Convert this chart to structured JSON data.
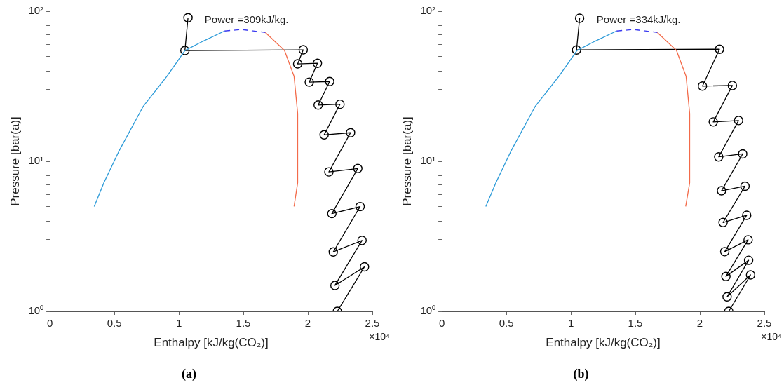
{
  "chart_data": [
    {
      "type": "line",
      "title": "(a)",
      "xlabel": "Enthalpy [kJ/kg(CO₂)]",
      "ylabel": "Pressure [bar(a)]",
      "annotations": [
        "Power =309kJ/kg.",
        "×10⁴"
      ],
      "log": "y",
      "grid": false,
      "legend": false,
      "xlim": [
        0,
        2.5
      ],
      "xticks": [
        0,
        0.5,
        1,
        1.5,
        2,
        2.5
      ],
      "ylim": [
        1,
        100
      ],
      "yticks": [
        {
          "value": 1,
          "label": "10⁰"
        },
        {
          "value": 2,
          "label": null
        },
        {
          "value": 3,
          "label": null
        },
        {
          "value": 4,
          "label": null
        },
        {
          "value": 5,
          "label": null
        },
        {
          "value": 6,
          "label": null
        },
        {
          "value": 7,
          "label": null
        },
        {
          "value": 8,
          "label": null
        },
        {
          "value": 9,
          "label": null
        },
        {
          "value": 10,
          "label": "10¹"
        },
        {
          "value": 20,
          "label": null
        },
        {
          "value": 30,
          "label": null
        },
        {
          "value": 40,
          "label": null
        },
        {
          "value": 50,
          "label": null
        },
        {
          "value": 60,
          "label": null
        },
        {
          "value": 70,
          "label": null
        },
        {
          "value": 80,
          "label": null
        },
        {
          "value": 90,
          "label": null
        },
        {
          "value": 100,
          "label": "10²"
        }
      ],
      "series": [
        {
          "color": "#2b9ad8",
          "marker": "none",
          "line_style": "solid",
          "x": [
            0.344,
            0.419,
            0.536,
            0.722,
            0.908,
            1.047,
            1.187,
            1.354
          ],
          "values": [
            5.0,
            7.2,
            11.7,
            23.1,
            36.9,
            54.7,
            63.1,
            73.8
          ]
        },
        {
          "color": "#3a3af0",
          "marker": "none",
          "line_style": "dashed",
          "x": [
            1.354,
            1.484,
            1.67
          ],
          "values": [
            73.8,
            75.6,
            72.2
          ]
        },
        {
          "color": "#f36b4a",
          "marker": "none",
          "line_style": "solid",
          "x": [
            1.67,
            1.819,
            1.893,
            1.921,
            1.921,
            1.893
          ],
          "values": [
            72.2,
            54.7,
            36.9,
            20.8,
            7.2,
            5.0
          ]
        },
        {
          "color": "#000000",
          "marker": "circle",
          "line_style": "solid",
          "x": [
            1.071,
            1.047,
            1.964,
            1.921,
            2.074,
            2.011,
            2.169,
            2.08,
            2.249,
            2.126,
            2.331,
            2.163,
            2.387,
            2.186,
            2.405,
            2.197,
            2.42,
            2.21,
            2.439,
            2.228
          ],
          "values": [
            90.5,
            54.7,
            55.3,
            44.6,
            45,
            33.7,
            34,
            23.7,
            24,
            15,
            15.5,
            8.5,
            8.95,
            4.48,
            4.99,
            2.49,
            2.97,
            1.49,
            1.98,
            1.0
          ]
        }
      ]
    },
    {
      "type": "line",
      "title": "(b)",
      "xlabel": "Enthalpy [kJ/kg(CO₂)]",
      "ylabel": "Pressure [bar(a)]",
      "annotations": [
        "Power =334kJ/kg.",
        "×10⁴"
      ],
      "log": "y",
      "grid": false,
      "legend": false,
      "xlim": [
        0,
        2.5
      ],
      "xticks": [
        0,
        0.5,
        1,
        1.5,
        2,
        2.5
      ],
      "ylim": [
        1,
        100
      ],
      "yticks": [
        {
          "value": 1,
          "label": "10⁰"
        },
        {
          "value": 2,
          "label": null
        },
        {
          "value": 3,
          "label": null
        },
        {
          "value": 4,
          "label": null
        },
        {
          "value": 5,
          "label": null
        },
        {
          "value": 6,
          "label": null
        },
        {
          "value": 7,
          "label": null
        },
        {
          "value": 8,
          "label": null
        },
        {
          "value": 9,
          "label": null
        },
        {
          "value": 10,
          "label": "10¹"
        },
        {
          "value": 20,
          "label": null
        },
        {
          "value": 30,
          "label": null
        },
        {
          "value": 40,
          "label": null
        },
        {
          "value": 50,
          "label": null
        },
        {
          "value": 60,
          "label": null
        },
        {
          "value": 70,
          "label": null
        },
        {
          "value": 80,
          "label": null
        },
        {
          "value": 90,
          "label": null
        },
        {
          "value": 100,
          "label": "10²"
        }
      ],
      "series": [
        {
          "color": "#2b9ad8",
          "marker": "none",
          "line_style": "solid",
          "x": [
            0.341,
            0.419,
            0.536,
            0.722,
            0.908,
            1.047,
            1.187,
            1.354
          ],
          "values": [
            5.0,
            7.2,
            11.7,
            23.1,
            36.9,
            54.7,
            63.1,
            73.8
          ]
        },
        {
          "color": "#3a3af0",
          "marker": "none",
          "line_style": "dashed",
          "x": [
            1.354,
            1.484,
            1.67
          ],
          "values": [
            73.8,
            75.6,
            72.2
          ]
        },
        {
          "color": "#f36b4a",
          "marker": "none",
          "line_style": "solid",
          "x": [
            1.67,
            1.819,
            1.893,
            1.921,
            1.921,
            1.89
          ],
          "values": [
            72.2,
            54.7,
            36.9,
            20.8,
            7.2,
            5.0
          ]
        },
        {
          "color": "#000000",
          "marker": "circle",
          "line_style": "solid",
          "x": [
            1.068,
            1.044,
            2.152,
            2.02,
            2.252,
            2.104,
            2.3,
            2.146,
            2.332,
            2.168,
            2.35,
            2.18,
            2.363,
            2.193,
            2.374,
            2.202,
            2.378,
            2.211,
            2.393,
            2.224
          ],
          "values": [
            89.8,
            55.2,
            55.8,
            31.7,
            32,
            18.3,
            18.7,
            10.7,
            11.2,
            6.36,
            6.83,
            3.91,
            4.37,
            2.5,
            3.0,
            1.71,
            2.19,
            1.25,
            1.75,
            1.0
          ]
        }
      ]
    }
  ]
}
